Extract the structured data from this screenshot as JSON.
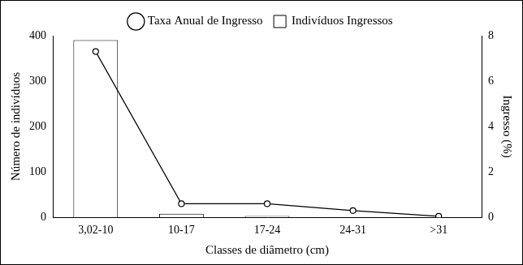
{
  "chart_data": {
    "type": "bar",
    "categories": [
      "3,02-10",
      "10-17",
      "17-24",
      "24-31",
      ">31"
    ],
    "x_label": "Classes de diâmetro (cm)",
    "y_label": "Número de indivíduos",
    "y2_label": "Ingresso (%)",
    "series": [
      {
        "name": "Indivíduos Ingressos",
        "type": "bar",
        "color": "#ffffff",
        "values": [
          390,
          8,
          3,
          1,
          0
        ]
      },
      {
        "name": "Taxa Anual de Ingresso",
        "type": "line",
        "axis": "y2",
        "color": "#000000",
        "marker": "circle",
        "line_style": "solid",
        "values": [
          7.3,
          0.6,
          0.6,
          0.3,
          0.05
        ]
      }
    ],
    "ylim": [
      0,
      400
    ],
    "yticks": [
      0,
      100,
      200,
      300,
      400
    ],
    "y2lim": [
      0,
      8
    ],
    "y2ticks": [
      0,
      2,
      4,
      6,
      8
    ],
    "grid": false,
    "legend": "top"
  }
}
